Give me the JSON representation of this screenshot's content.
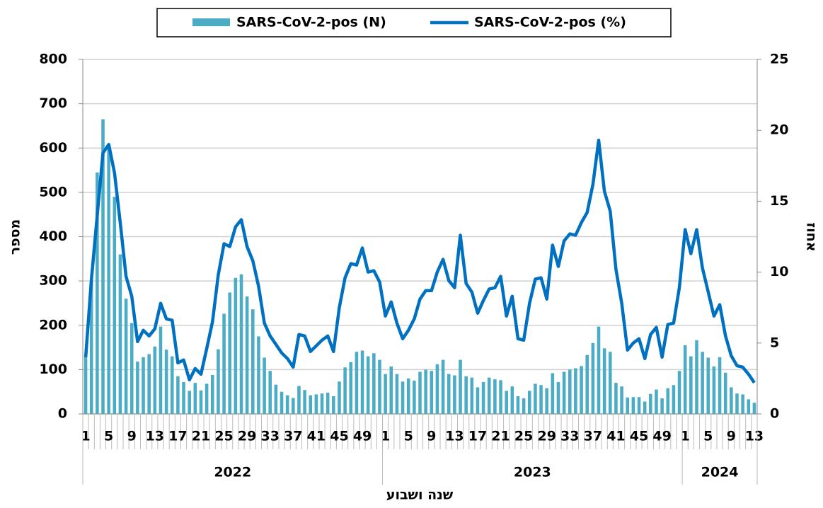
{
  "chart_data": {
    "type": "bar-line",
    "categories": [
      "1",
      null,
      null,
      null,
      "5",
      null,
      null,
      null,
      "9",
      null,
      null,
      null,
      "13",
      null,
      null,
      null,
      "17",
      null,
      null,
      null,
      "21",
      null,
      null,
      null,
      "25",
      null,
      null,
      null,
      "29",
      null,
      null,
      null,
      "33",
      null,
      null,
      null,
      "37",
      null,
      null,
      null,
      "41",
      null,
      null,
      null,
      "45",
      null,
      null,
      null,
      "49",
      null,
      null,
      null,
      "1",
      null,
      null,
      null,
      "5",
      null,
      null,
      null,
      "9",
      null,
      null,
      null,
      "13",
      null,
      null,
      null,
      "17",
      null,
      null,
      null,
      "21",
      null,
      null,
      null,
      "25",
      null,
      null,
      null,
      "29",
      null,
      null,
      null,
      "33",
      null,
      null,
      null,
      "37",
      null,
      null,
      null,
      "41",
      null,
      null,
      null,
      "45",
      null,
      null,
      null,
      "49",
      null,
      null,
      null,
      "1",
      null,
      null,
      null,
      "5",
      null,
      null,
      null,
      "9",
      null,
      null,
      null,
      "13"
    ],
    "x_groups": [
      "2022",
      "2023",
      "2024"
    ],
    "x_label": "שנה ושבוע",
    "y_label": "מספר",
    "y2_label": "אחוז",
    "series": [
      {
        "name": "SARS-CoV-2-pos (N)",
        "type": "bar",
        "color": "#4bacc6",
        "values": [
          130,
          300,
          545,
          665,
          600,
          490,
          360,
          260,
          205,
          118,
          128,
          135,
          152,
          197,
          145,
          130,
          85,
          72,
          52,
          70,
          53,
          68,
          88,
          146,
          226,
          274,
          307,
          315,
          265,
          236,
          175,
          127,
          97,
          66,
          50,
          42,
          36,
          63,
          54,
          42,
          44,
          46,
          48,
          40,
          73,
          105,
          117,
          140,
          143,
          130,
          137,
          122,
          90,
          107,
          90,
          73,
          80,
          75,
          95,
          100,
          97,
          112,
          122,
          90,
          87,
          122,
          85,
          82,
          60,
          72,
          82,
          78,
          76,
          52,
          62,
          40,
          35,
          52,
          68,
          65,
          58,
          92,
          72,
          95,
          100,
          103,
          108,
          133,
          160,
          197,
          148,
          140,
          70,
          62,
          37,
          38,
          38,
          28,
          45,
          55,
          35,
          58,
          65,
          97,
          155,
          130,
          166,
          140,
          127,
          107,
          128,
          93,
          60,
          46,
          44,
          33,
          25
        ]
      },
      {
        "name": "SARS-CoV-2-pos (%)",
        "type": "line",
        "axis": "y2",
        "color": "#0070c0",
        "values": [
          4,
          9.5,
          14,
          18.4,
          19,
          17,
          13.5,
          9.7,
          8.3,
          5.1,
          5.9,
          5.5,
          6,
          7.8,
          6.7,
          6.6,
          3.6,
          3.8,
          2.4,
          3.2,
          2.8,
          4.6,
          6.5,
          9.8,
          12,
          11.8,
          13.2,
          13.7,
          11.8,
          10.8,
          9,
          6.4,
          5.5,
          4.9,
          4.3,
          3.9,
          3.3,
          5.6,
          5.5,
          4.4,
          4.8,
          5.2,
          5.5,
          4.4,
          7.5,
          9.6,
          10.6,
          10.5,
          11.7,
          10,
          10.1,
          9.3,
          6.9,
          7.9,
          6.4,
          5.3,
          5.9,
          6.7,
          8.1,
          8.7,
          8.7,
          10,
          10.9,
          9.4,
          8.9,
          12.6,
          9.2,
          8.6,
          7.1,
          8,
          8.8,
          8.9,
          9.7,
          6.9,
          8.3,
          5.3,
          5.2,
          7.8,
          9.5,
          9.6,
          8.1,
          11.9,
          10.4,
          12.2,
          12.7,
          12.6,
          13.5,
          14.2,
          16.2,
          19.3,
          15.7,
          14.3,
          10.2,
          7.8,
          4.5,
          5,
          5.3,
          3.9,
          5.6,
          6.1,
          4,
          6.3,
          6.4,
          8.9,
          13,
          11.3,
          13,
          10.3,
          8.6,
          6.9,
          7.7,
          5.5,
          4.1,
          3.4,
          3.3,
          2.8,
          2.2
        ]
      }
    ],
    "ylim": [
      0,
      800
    ],
    "yticks": [
      0,
      100,
      200,
      300,
      400,
      500,
      600,
      700,
      800
    ],
    "y2lim": [
      0,
      25
    ],
    "y2ticks": [
      0,
      5,
      10,
      15,
      20,
      25
    ],
    "grid": true,
    "legend": "top"
  }
}
